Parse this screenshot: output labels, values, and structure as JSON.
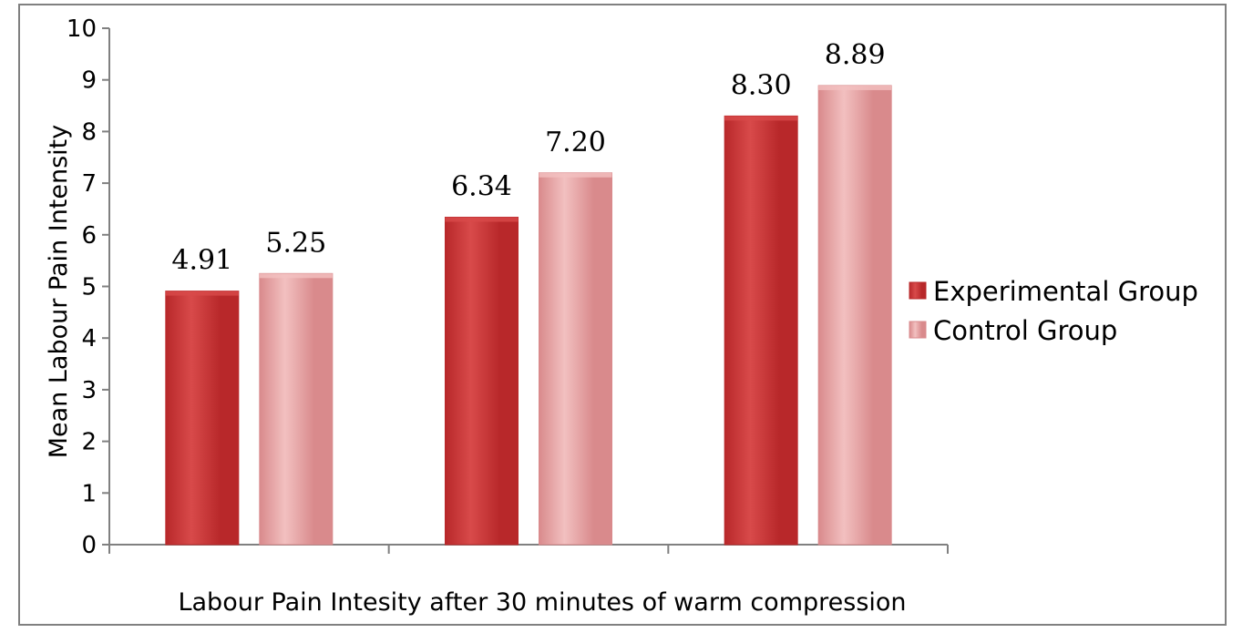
{
  "chart_data": {
    "type": "bar",
    "categories": [
      "",
      "",
      ""
    ],
    "series": [
      {
        "name": "Experimental Group",
        "values": [
          4.91,
          6.34,
          8.3
        ],
        "labels": [
          "4.91",
          "6.34",
          "8.30"
        ],
        "color": "#b8282a",
        "highlight": "#d84a4a"
      },
      {
        "name": "Control Group",
        "values": [
          5.25,
          7.2,
          8.89
        ],
        "labels": [
          "5.25",
          "7.20",
          "8.89"
        ],
        "color": "#d98a8c",
        "highlight": "#f2c0c0"
      }
    ],
    "title": "",
    "xlabel": "Labour Pain Intesity after 30 minutes of warm compression",
    "ylabel": "Mean Labour Pain Intensity",
    "ylim": [
      0,
      10
    ],
    "yticks": [
      0,
      1,
      2,
      3,
      4,
      5,
      6,
      7,
      8,
      9,
      10
    ],
    "grid": false,
    "legend_position": "right"
  }
}
